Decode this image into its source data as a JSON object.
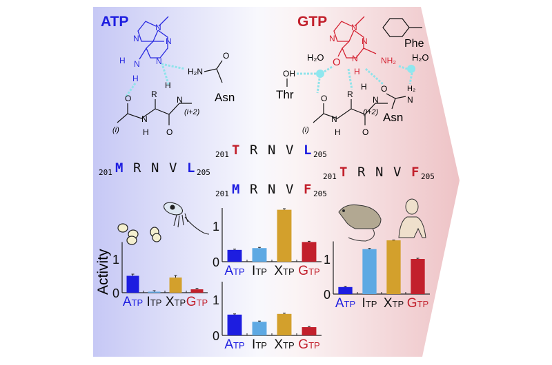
{
  "titles": {
    "atp": "ATP",
    "gtp": "GTP"
  },
  "colors": {
    "atp": "#1d1de0",
    "itp": "#5ea9e3",
    "xtp": "#d3a02c",
    "gtp": "#c2202c",
    "panel_left": "#c9cbf4",
    "panel_right": "#f0c9cc"
  },
  "atp_structure": {
    "labels": [
      "N",
      "N",
      "N",
      "N",
      "H",
      "N",
      "H"
    ],
    "asn": {
      "h2n": "H₂N",
      "o": "O",
      "name": "Asn"
    },
    "backbone": {
      "r": "R",
      "h_top": "H",
      "n": "N",
      "i2": "(i+2)",
      "o1": "O",
      "o2": "O",
      "n2": "N",
      "h2": "H",
      "i": "(i)"
    }
  },
  "gtp_structure": {
    "labels": [
      "N",
      "N",
      "N",
      "N",
      "O",
      "H",
      "NH₂"
    ],
    "phe": "Phe",
    "water1": "H₂O",
    "water2": "H₂O",
    "thr_oh": "OH",
    "thr": "Thr",
    "asn": {
      "h2": "H₂",
      "n": "N",
      "o": "O",
      "name": "Asn"
    },
    "backbone": {
      "r": "R",
      "h_top": "H",
      "n": "N",
      "i2": "(i+2)",
      "o1": "O",
      "o2": "O",
      "n2": "N",
      "h2": "H",
      "i": "(i)"
    }
  },
  "sequences": [
    {
      "start": "201",
      "residues": [
        "T",
        "R",
        "N",
        "V",
        "L"
      ],
      "residue_colors": [
        "gtp",
        "black",
        "black",
        "black",
        "atp"
      ],
      "end": "205"
    },
    {
      "start": "201",
      "residues": [
        "M",
        "R",
        "N",
        "V",
        "L"
      ],
      "residue_colors": [
        "atp",
        "black",
        "black",
        "black",
        "atp"
      ],
      "end": "205"
    },
    {
      "start": "201",
      "residues": [
        "T",
        "R",
        "N",
        "V",
        "F"
      ],
      "residue_colors": [
        "gtp",
        "black",
        "black",
        "black",
        "gtp"
      ],
      "end": "205"
    },
    {
      "start": "201",
      "residues": [
        "M",
        "R",
        "N",
        "V",
        "F"
      ],
      "residue_colors": [
        "atp",
        "black",
        "black",
        "black",
        "gtp"
      ],
      "end": "205"
    }
  ],
  "y_axis_label": "Activity",
  "organism_icons": [
    "yeast-cells-icon",
    "protozoan-icon",
    "rat-icon",
    "human-icon"
  ],
  "chart_data": [
    {
      "type": "bar",
      "categories": [
        "ATP",
        "ITP",
        "XTP",
        "GTP"
      ],
      "values": [
        0.5,
        0.03,
        0.45,
        0.1
      ],
      "error": [
        0.05,
        0.03,
        0.06,
        0.03
      ],
      "ylim": [
        0,
        1.5
      ],
      "yticks": [
        "0",
        "1"
      ],
      "ylabel": "Activity"
    },
    {
      "type": "bar",
      "categories": [
        "ATP",
        "ITP",
        "XTP",
        "GTP"
      ],
      "values": [
        0.33,
        0.38,
        1.45,
        0.55
      ],
      "error": [
        0.02,
        0.02,
        0.03,
        0.02
      ],
      "ylim": [
        0,
        1.5
      ],
      "yticks": [
        "0",
        "1"
      ]
    },
    {
      "type": "bar",
      "categories": [
        "ATP",
        "ITP",
        "XTP",
        "GTP"
      ],
      "values": [
        0.58,
        0.38,
        0.6,
        0.23
      ],
      "error": [
        0.02,
        0.02,
        0.02,
        0.02
      ],
      "ylim": [
        0,
        1.5
      ],
      "yticks": [
        "0",
        "1"
      ]
    },
    {
      "type": "bar",
      "categories": [
        "ATP",
        "ITP",
        "XTP",
        "GTP"
      ],
      "values": [
        0.2,
        1.28,
        1.53,
        1.0
      ],
      "error": [
        0.02,
        0.02,
        0.01,
        0.02
      ],
      "ylim": [
        0,
        1.5
      ],
      "yticks": [
        "0",
        "1"
      ]
    }
  ]
}
